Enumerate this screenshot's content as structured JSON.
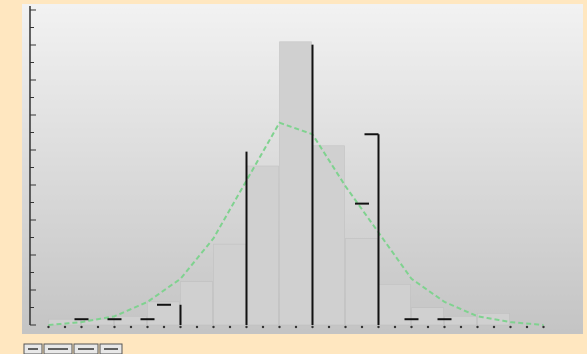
{
  "chart_data": {
    "type": "bar",
    "title": "",
    "xlabel": "",
    "ylabel": "",
    "grid": false,
    "legend": "none",
    "xlim": [
      0,
      16
    ],
    "ylim": [
      0,
      100
    ],
    "x_bins": [
      1,
      2,
      3,
      4,
      5,
      6,
      7,
      8,
      9,
      10,
      11,
      12,
      13,
      14,
      15
    ],
    "series": [
      {
        "kind": "histogram",
        "values": [
          2,
          2,
          3,
          8,
          15,
          28,
          55,
          98,
          62,
          30,
          14,
          6,
          3,
          4,
          0
        ]
      },
      {
        "kind": "fitted-curve",
        "x": [
          0.5,
          1.5,
          2.5,
          3.5,
          4.5,
          5.5,
          6.5,
          7.5,
          8.5,
          9.5,
          10.5,
          11.5,
          12.5,
          13.5,
          14.5,
          15.5
        ],
        "values": [
          0,
          1,
          3,
          8,
          16,
          30,
          50,
          70,
          66,
          48,
          32,
          16,
          8,
          3,
          1,
          0
        ]
      },
      {
        "kind": "stems",
        "x": [
          4.5,
          6.5,
          8.5,
          10.5
        ],
        "values": [
          7,
          60,
          97,
          66
        ]
      },
      {
        "kind": "level-ticks",
        "x": [
          1.5,
          2.5,
          3.5,
          4,
          10,
          11.5,
          12.5
        ],
        "values": [
          2,
          2,
          2,
          7,
          42,
          2,
          2
        ]
      }
    ],
    "colors": {
      "background_top": "#f2f2f2",
      "background_bottom": "#c4c4c4",
      "bars": "#d0d0d0",
      "curve": "#7fd28f",
      "stems": "#111111",
      "frame": "#ffe7c0"
    },
    "toolbar_buttons": 4
  }
}
